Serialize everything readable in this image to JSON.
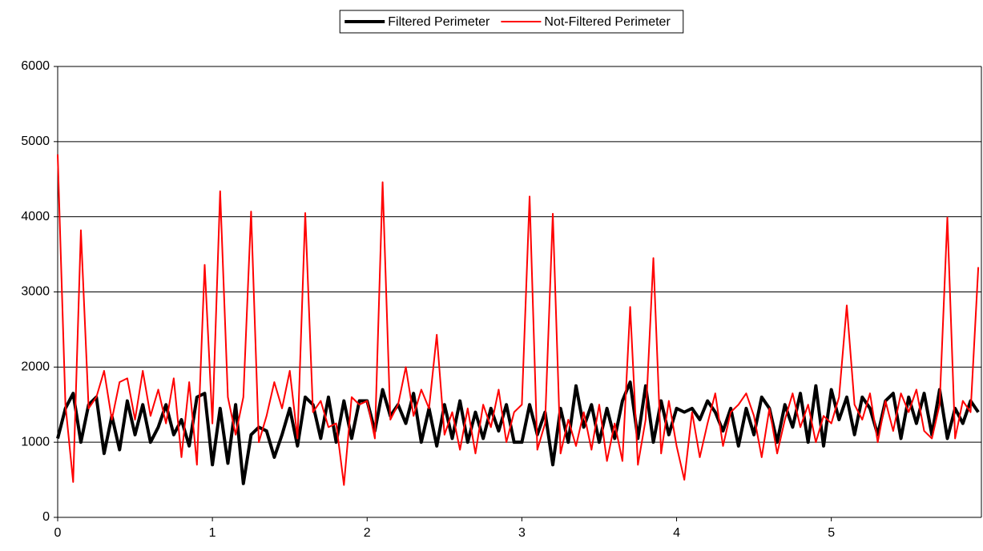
{
  "chart_data": {
    "type": "line",
    "x": [
      0,
      0.05,
      0.1,
      0.15,
      0.2,
      0.25,
      0.3,
      0.35,
      0.4,
      0.45,
      0.5,
      0.55,
      0.6,
      0.65,
      0.7,
      0.75,
      0.8,
      0.85,
      0.9,
      0.95,
      1,
      1.05,
      1.1,
      1.15,
      1.2,
      1.25,
      1.3,
      1.35,
      1.4,
      1.45,
      1.5,
      1.55,
      1.6,
      1.65,
      1.7,
      1.75,
      1.8,
      1.85,
      1.9,
      1.95,
      2,
      2.05,
      2.1,
      2.15,
      2.2,
      2.25,
      2.3,
      2.35,
      2.4,
      2.45,
      2.5,
      2.55,
      2.6,
      2.65,
      2.7,
      2.75,
      2.8,
      2.85,
      2.9,
      2.95,
      3,
      3.05,
      3.1,
      3.15,
      3.2,
      3.25,
      3.3,
      3.35,
      3.4,
      3.45,
      3.5,
      3.55,
      3.6,
      3.65,
      3.7,
      3.75,
      3.8,
      3.85,
      3.9,
      3.95,
      4,
      4.05,
      4.1,
      4.15,
      4.2,
      4.25,
      4.3,
      4.35,
      4.4,
      4.45,
      4.5,
      4.55,
      4.6,
      4.65,
      4.7,
      4.75,
      4.8,
      4.85,
      4.9,
      4.95,
      5,
      5.05,
      5.1,
      5.15,
      5.2,
      5.25,
      5.3,
      5.35,
      5.4,
      5.45,
      5.5,
      5.55,
      5.6,
      5.65,
      5.7,
      5.75,
      5.8,
      5.85,
      5.9,
      5.95
    ],
    "series": [
      {
        "name": "Filtered Perimeter",
        "color": "#000000",
        "width": 4,
        "values": [
          1050,
          1450,
          1650,
          1000,
          1500,
          1600,
          850,
          1350,
          900,
          1550,
          1100,
          1500,
          1000,
          1200,
          1500,
          1100,
          1300,
          950,
          1600,
          1650,
          700,
          1450,
          720,
          1500,
          450,
          1100,
          1200,
          1150,
          800,
          1100,
          1450,
          950,
          1600,
          1500,
          1050,
          1600,
          1000,
          1550,
          1050,
          1550,
          1550,
          1150,
          1700,
          1350,
          1500,
          1250,
          1650,
          1000,
          1450,
          950,
          1500,
          1050,
          1550,
          1000,
          1400,
          1050,
          1450,
          1150,
          1500,
          1000,
          1000,
          1500,
          1100,
          1400,
          700,
          1450,
          1000,
          1750,
          1200,
          1500,
          1000,
          1450,
          1050,
          1550,
          1800,
          1050,
          1750,
          1000,
          1550,
          1100,
          1450,
          1400,
          1450,
          1300,
          1550,
          1400,
          1150,
          1450,
          950,
          1450,
          1100,
          1600,
          1450,
          1000,
          1500,
          1200,
          1650,
          1000,
          1750,
          950,
          1700,
          1300,
          1600,
          1100,
          1600,
          1450,
          1100,
          1550,
          1650,
          1050,
          1600,
          1250,
          1650,
          1100,
          1700,
          1050,
          1450,
          1250,
          1550,
          1400
        ]
      },
      {
        "name": "Not-Filtered Perimeter",
        "color": "#ff0000",
        "width": 2,
        "values": [
          4830,
          1500,
          470,
          3820,
          1450,
          1600,
          1950,
          1300,
          1800,
          1850,
          1300,
          1950,
          1350,
          1700,
          1250,
          1850,
          800,
          1800,
          700,
          3360,
          1250,
          4340,
          1600,
          1100,
          1600,
          4070,
          1000,
          1350,
          1800,
          1450,
          1950,
          1050,
          4050,
          1400,
          1550,
          1200,
          1250,
          430,
          1600,
          1500,
          1550,
          1050,
          4460,
          1300,
          1500,
          2000,
          1350,
          1700,
          1450,
          2430,
          1100,
          1400,
          900,
          1450,
          850,
          1500,
          1200,
          1700,
          1000,
          1400,
          1500,
          4270,
          900,
          1250,
          4040,
          850,
          1300,
          950,
          1400,
          900,
          1500,
          750,
          1250,
          750,
          2800,
          700,
          1300,
          3450,
          850,
          1550,
          950,
          500,
          1400,
          800,
          1250,
          1650,
          950,
          1400,
          1500,
          1650,
          1350,
          800,
          1450,
          850,
          1300,
          1650,
          1200,
          1500,
          1000,
          1350,
          1250,
          1600,
          2820,
          1500,
          1300,
          1650,
          1000,
          1550,
          1150,
          1650,
          1400,
          1700,
          1150,
          1050,
          1500,
          3990,
          1050,
          1550,
          1400,
          3330
        ]
      }
    ],
    "xlim": [
      0,
      5.97
    ],
    "xticks": [
      0,
      1,
      2,
      3,
      4,
      5
    ],
    "ylim": [
      0,
      6000
    ],
    "yticks": [
      0,
      1000,
      2000,
      3000,
      4000,
      5000,
      6000
    ],
    "grid": true,
    "legend": "top"
  }
}
